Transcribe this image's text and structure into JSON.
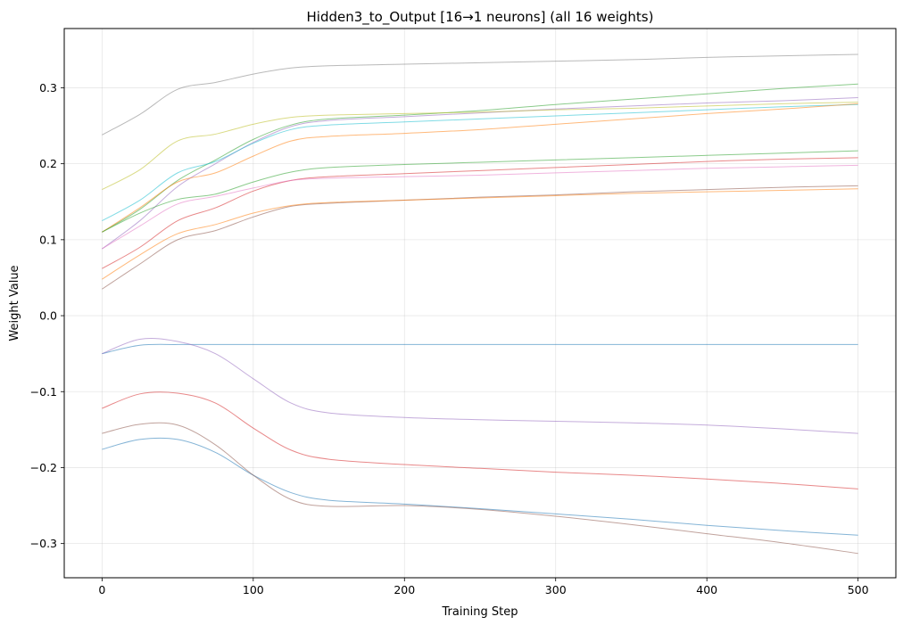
{
  "chart_data": {
    "type": "line",
    "title": "Hidden3_to_Output [16→1 neurons] (all 16 weights)",
    "xlabel": "Training Step",
    "ylabel": "Weight Value",
    "xlim": [
      -25,
      525
    ],
    "ylim": [
      -0.345,
      0.378
    ],
    "xticks": [
      0,
      100,
      200,
      300,
      400,
      500
    ],
    "xtick_labels": [
      "0",
      "100",
      "200",
      "300",
      "400",
      "500"
    ],
    "yticks": [
      -0.3,
      -0.2,
      -0.1,
      0.0,
      0.1,
      0.2,
      0.3
    ],
    "ytick_labels": [
      "−0.3",
      "−0.2",
      "−0.1",
      "0.0",
      "0.1",
      "0.2",
      "0.3"
    ],
    "grid": true,
    "x": [
      0,
      25,
      50,
      75,
      100,
      125,
      150,
      200,
      250,
      300,
      350,
      400,
      450,
      500
    ],
    "series": [
      {
        "color": "#7f7f7f",
        "values": [
          0.238,
          0.265,
          0.298,
          0.307,
          0.318,
          0.326,
          0.329,
          0.331,
          0.333,
          0.335,
          0.337,
          0.34,
          0.342,
          0.344
        ]
      },
      {
        "color": "#2ca02c",
        "values": [
          0.11,
          0.14,
          0.178,
          0.205,
          0.232,
          0.251,
          0.259,
          0.264,
          0.27,
          0.278,
          0.285,
          0.292,
          0.299,
          0.305
        ]
      },
      {
        "color": "#9467bd",
        "values": [
          0.088,
          0.125,
          0.17,
          0.2,
          0.228,
          0.249,
          0.257,
          0.262,
          0.267,
          0.272,
          0.276,
          0.28,
          0.283,
          0.287
        ]
      },
      {
        "color": "#bcbd22",
        "values": [
          0.166,
          0.192,
          0.23,
          0.239,
          0.252,
          0.261,
          0.264,
          0.266,
          0.268,
          0.271,
          0.273,
          0.276,
          0.279,
          0.281
        ]
      },
      {
        "color": "#17becf",
        "values": [
          0.125,
          0.152,
          0.188,
          0.203,
          0.227,
          0.245,
          0.251,
          0.255,
          0.259,
          0.263,
          0.267,
          0.271,
          0.275,
          0.278
        ]
      },
      {
        "color": "#ff7f0e",
        "values": [
          0.11,
          0.142,
          0.176,
          0.188,
          0.21,
          0.23,
          0.236,
          0.24,
          0.245,
          0.252,
          0.259,
          0.266,
          0.272,
          0.279
        ]
      },
      {
        "color": "#2ca02c",
        "values": [
          0.11,
          0.135,
          0.153,
          0.16,
          0.176,
          0.189,
          0.195,
          0.199,
          0.202,
          0.205,
          0.208,
          0.211,
          0.214,
          0.217
        ]
      },
      {
        "color": "#d62728",
        "values": [
          0.062,
          0.09,
          0.125,
          0.142,
          0.164,
          0.178,
          0.183,
          0.187,
          0.191,
          0.195,
          0.199,
          0.203,
          0.206,
          0.208
        ]
      },
      {
        "color": "#e377c2",
        "values": [
          0.088,
          0.118,
          0.147,
          0.157,
          0.168,
          0.178,
          0.181,
          0.183,
          0.185,
          0.188,
          0.191,
          0.194,
          0.196,
          0.198
        ]
      },
      {
        "color": "#8c564b",
        "values": [
          0.035,
          0.068,
          0.1,
          0.112,
          0.13,
          0.144,
          0.148,
          0.152,
          0.156,
          0.159,
          0.163,
          0.166,
          0.169,
          0.171
        ]
      },
      {
        "color": "#ff7f0e",
        "values": [
          0.048,
          0.08,
          0.108,
          0.12,
          0.135,
          0.145,
          0.149,
          0.152,
          0.155,
          0.158,
          0.161,
          0.163,
          0.165,
          0.167
        ]
      },
      {
        "color": "#1f77b4",
        "values": [
          -0.05,
          -0.039,
          -0.038,
          -0.038,
          -0.038,
          -0.038,
          -0.038,
          -0.038,
          -0.038,
          -0.038,
          -0.038,
          -0.038,
          -0.038,
          -0.038
        ]
      },
      {
        "color": "#9467bd",
        "values": [
          -0.05,
          -0.031,
          -0.034,
          -0.05,
          -0.083,
          -0.115,
          -0.128,
          -0.134,
          -0.137,
          -0.139,
          -0.141,
          -0.144,
          -0.149,
          -0.155
        ]
      },
      {
        "color": "#d62728",
        "values": [
          -0.122,
          -0.103,
          -0.102,
          -0.115,
          -0.148,
          -0.177,
          -0.189,
          -0.196,
          -0.201,
          -0.206,
          -0.21,
          -0.215,
          -0.221,
          -0.228
        ]
      },
      {
        "color": "#1f77b4",
        "values": [
          -0.176,
          -0.163,
          -0.163,
          -0.18,
          -0.21,
          -0.233,
          -0.243,
          -0.248,
          -0.254,
          -0.261,
          -0.268,
          -0.276,
          -0.283,
          -0.289
        ]
      },
      {
        "color": "#8c564b",
        "values": [
          -0.155,
          -0.143,
          -0.144,
          -0.17,
          -0.21,
          -0.242,
          -0.251,
          -0.25,
          -0.255,
          -0.264,
          -0.275,
          -0.287,
          -0.299,
          -0.313
        ]
      }
    ]
  }
}
